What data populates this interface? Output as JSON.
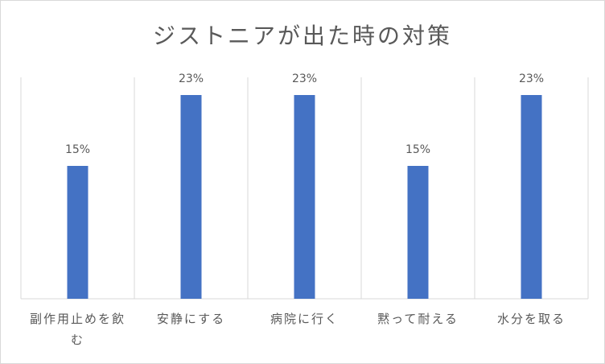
{
  "chart_data": {
    "type": "bar",
    "title": "ジストニアが出た時の対策",
    "categories": [
      "副作用止めを飲む",
      "安静にする",
      "病院に行く",
      "黙って耐える",
      "水分を取る"
    ],
    "values": [
      15,
      23,
      23,
      15,
      23
    ],
    "value_format": "percent",
    "ylim": [
      0,
      25
    ],
    "grid": "vertical-category-separators",
    "legend": "none",
    "bar_color": "#4472c4",
    "xlabel": "",
    "ylabel": ""
  }
}
